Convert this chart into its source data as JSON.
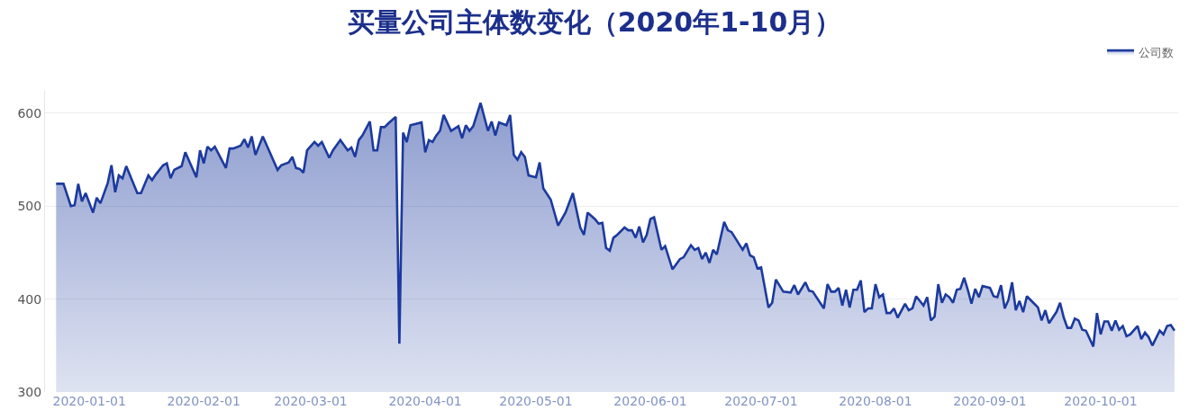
{
  "chart_data": {
    "type": "area",
    "title": "买量公司主体数变化（2020年1-10月）",
    "x": [
      "2019-12-23",
      "2019-12-25",
      "2019-12-27",
      "2019-12-28",
      "2019-12-29",
      "2019-12-30",
      "2019-12-31",
      "2020-01-02",
      "2020-01-03",
      "2020-01-04",
      "2020-01-06",
      "2020-01-07",
      "2020-01-08",
      "2020-01-09",
      "2020-01-10",
      "2020-01-11",
      "2020-01-14",
      "2020-01-15",
      "2020-01-17",
      "2020-01-18",
      "2020-01-19",
      "2020-01-21",
      "2020-01-22",
      "2020-01-23",
      "2020-01-24",
      "2020-01-26",
      "2020-01-27",
      "2020-01-30",
      "2020-01-31",
      "2020-02-01",
      "2020-02-02",
      "2020-02-03",
      "2020-02-04",
      "2020-02-07",
      "2020-02-08",
      "2020-02-09",
      "2020-02-11",
      "2020-02-12",
      "2020-02-13",
      "2020-02-14",
      "2020-02-15",
      "2020-02-17",
      "2020-02-21",
      "2020-02-22",
      "2020-02-24",
      "2020-02-25",
      "2020-02-26",
      "2020-02-27",
      "2020-02-28",
      "2020-02-29",
      "2020-03-02",
      "2020-03-03",
      "2020-03-04",
      "2020-03-06",
      "2020-03-07",
      "2020-03-09",
      "2020-03-11",
      "2020-03-12",
      "2020-03-13",
      "2020-03-14",
      "2020-03-15",
      "2020-03-17",
      "2020-03-18",
      "2020-03-19",
      "2020-03-20",
      "2020-03-21",
      "2020-03-22",
      "2020-03-24",
      "2020-03-25",
      "2020-03-26",
      "2020-03-27",
      "2020-03-28",
      "2020-03-31",
      "2020-04-01",
      "2020-04-02",
      "2020-04-03",
      "2020-04-04",
      "2020-04-05",
      "2020-04-06",
      "2020-04-08",
      "2020-04-10",
      "2020-04-11",
      "2020-04-12",
      "2020-04-13",
      "2020-04-14",
      "2020-04-16",
      "2020-04-18",
      "2020-04-19",
      "2020-04-20",
      "2020-04-21",
      "2020-04-23",
      "2020-04-24",
      "2020-04-25",
      "2020-04-26",
      "2020-04-27",
      "2020-04-28",
      "2020-04-29",
      "2020-05-01",
      "2020-05-02",
      "2020-05-03",
      "2020-05-05",
      "2020-05-07",
      "2020-05-09",
      "2020-05-11",
      "2020-05-13",
      "2020-05-14",
      "2020-05-15",
      "2020-05-17",
      "2020-05-18",
      "2020-05-19",
      "2020-05-20",
      "2020-05-21",
      "2020-05-22",
      "2020-05-23",
      "2020-05-25",
      "2020-05-26",
      "2020-05-27",
      "2020-05-28",
      "2020-05-29",
      "2020-05-30",
      "2020-05-31",
      "2020-06-01",
      "2020-06-02",
      "2020-06-04",
      "2020-06-05",
      "2020-06-07",
      "2020-06-09",
      "2020-06-10",
      "2020-06-12",
      "2020-06-13",
      "2020-06-14",
      "2020-06-15",
      "2020-06-16",
      "2020-06-17",
      "2020-06-18",
      "2020-06-19",
      "2020-06-21",
      "2020-06-22",
      "2020-06-23",
      "2020-06-26",
      "2020-06-27",
      "2020-06-28",
      "2020-06-29",
      "2020-06-30",
      "2020-07-01",
      "2020-07-03",
      "2020-07-04",
      "2020-07-05",
      "2020-07-07",
      "2020-07-09",
      "2020-07-10",
      "2020-07-11",
      "2020-07-13",
      "2020-07-14",
      "2020-07-15",
      "2020-07-18",
      "2020-07-19",
      "2020-07-20",
      "2020-07-21",
      "2020-07-22",
      "2020-07-23",
      "2020-07-24",
      "2020-07-25",
      "2020-07-26",
      "2020-07-27",
      "2020-07-28",
      "2020-07-29",
      "2020-07-30",
      "2020-07-31",
      "2020-08-01",
      "2020-08-02",
      "2020-08-03",
      "2020-08-04",
      "2020-08-05",
      "2020-08-06",
      "2020-08-07",
      "2020-08-09",
      "2020-08-10",
      "2020-08-11",
      "2020-08-12",
      "2020-08-14",
      "2020-08-15",
      "2020-08-16",
      "2020-08-17",
      "2020-08-18",
      "2020-08-19",
      "2020-08-20",
      "2020-08-21",
      "2020-08-22",
      "2020-08-23",
      "2020-08-24",
      "2020-08-25",
      "2020-08-26",
      "2020-08-27",
      "2020-08-28",
      "2020-08-29",
      "2020-08-30",
      "2020-09-01",
      "2020-09-02",
      "2020-09-03",
      "2020-09-04",
      "2020-09-05",
      "2020-09-06",
      "2020-09-07",
      "2020-09-08",
      "2020-09-09",
      "2020-09-10",
      "2020-09-11",
      "2020-09-13",
      "2020-09-14",
      "2020-09-15",
      "2020-09-16",
      "2020-09-17",
      "2020-09-19",
      "2020-09-20",
      "2020-09-21",
      "2020-09-22",
      "2020-09-23",
      "2020-09-24",
      "2020-09-25",
      "2020-09-26",
      "2020-09-27",
      "2020-09-29",
      "2020-09-30",
      "2020-10-01",
      "2020-10-02",
      "2020-10-03",
      "2020-10-04",
      "2020-10-05",
      "2020-10-06",
      "2020-10-07",
      "2020-10-08",
      "2020-10-09",
      "2020-10-11",
      "2020-10-12",
      "2020-10-13",
      "2020-10-14",
      "2020-10-15",
      "2020-10-17",
      "2020-10-18",
      "2020-10-19",
      "2020-10-20",
      "2020-10-21"
    ],
    "series": [
      {
        "name": "公司数",
        "color": "#1c3a9e",
        "values": [
          524,
          524,
          500,
          501,
          524,
          505,
          514,
          493,
          509,
          503,
          525,
          544,
          515,
          533,
          530,
          543,
          514,
          514,
          533,
          528,
          534,
          544,
          546,
          530,
          539,
          543,
          558,
          531,
          560,
          546,
          564,
          560,
          564,
          541,
          562,
          562,
          565,
          572,
          563,
          575,
          555,
          575,
          539,
          544,
          547,
          553,
          541,
          540,
          536,
          560,
          569,
          565,
          569,
          552,
          560,
          571,
          560,
          563,
          553,
          571,
          576,
          591,
          560,
          560,
          585,
          585,
          589,
          596,
          352,
          579,
          569,
          587,
          590,
          558,
          571,
          569,
          576,
          581,
          598,
          581,
          586,
          573,
          587,
          581,
          586,
          611,
          581,
          591,
          576,
          590,
          587,
          598,
          555,
          550,
          558,
          553,
          533,
          531,
          547,
          519,
          507,
          479,
          493,
          514,
          477,
          469,
          493,
          486,
          481,
          482,
          455,
          452,
          466,
          469,
          477,
          474,
          474,
          466,
          478,
          461,
          469,
          486,
          488,
          453,
          457,
          432,
          443,
          445,
          458,
          453,
          455,
          443,
          450,
          439,
          453,
          448,
          483,
          474,
          472,
          453,
          460,
          447,
          445,
          433,
          434,
          391,
          396,
          421,
          408,
          407,
          415,
          405,
          418,
          409,
          408,
          390,
          416,
          408,
          408,
          412,
          393,
          410,
          391,
          410,
          410,
          420,
          386,
          390,
          390,
          416,
          402,
          405,
          385,
          385,
          390,
          380,
          395,
          388,
          390,
          403,
          393,
          402,
          377,
          381,
          416,
          396,
          405,
          402,
          396,
          410,
          411,
          423,
          410,
          395,
          411,
          402,
          414,
          412,
          403,
          402,
          415,
          390,
          399,
          418,
          388,
          398,
          386,
          403,
          395,
          391,
          377,
          388,
          374,
          386,
          396,
          380,
          369,
          369,
          379,
          377,
          367,
          366,
          349,
          385,
          362,
          376,
          376,
          366,
          377,
          367,
          371,
          360,
          362,
          371,
          357,
          364,
          359,
          350,
          366,
          362,
          371,
          372,
          366
        ]
      }
    ],
    "xlim": [
      "2019-12-20",
      "2020-10-22"
    ],
    "xticks": [
      {
        "value": "2020-01-01",
        "label": "2020-01-01"
      },
      {
        "value": "2020-02-01",
        "label": "2020-02-01"
      },
      {
        "value": "2020-03-01",
        "label": "2020-03-01"
      },
      {
        "value": "2020-04-01",
        "label": "2020-04-01"
      },
      {
        "value": "2020-05-01",
        "label": "2020-05-01"
      },
      {
        "value": "2020-06-01",
        "label": "2020-06-01"
      },
      {
        "value": "2020-07-01",
        "label": "2020-07-01"
      },
      {
        "value": "2020-08-01",
        "label": "2020-08-01"
      },
      {
        "value": "2020-09-01",
        "label": "2020-09-01"
      },
      {
        "value": "2020-10-01",
        "label": "2020-10-01"
      }
    ],
    "ylim": [
      300,
      625
    ],
    "yticks": [
      300,
      400,
      500,
      600
    ],
    "grid": "y",
    "legend": "top right",
    "marker": "none",
    "line_style": "solid"
  }
}
